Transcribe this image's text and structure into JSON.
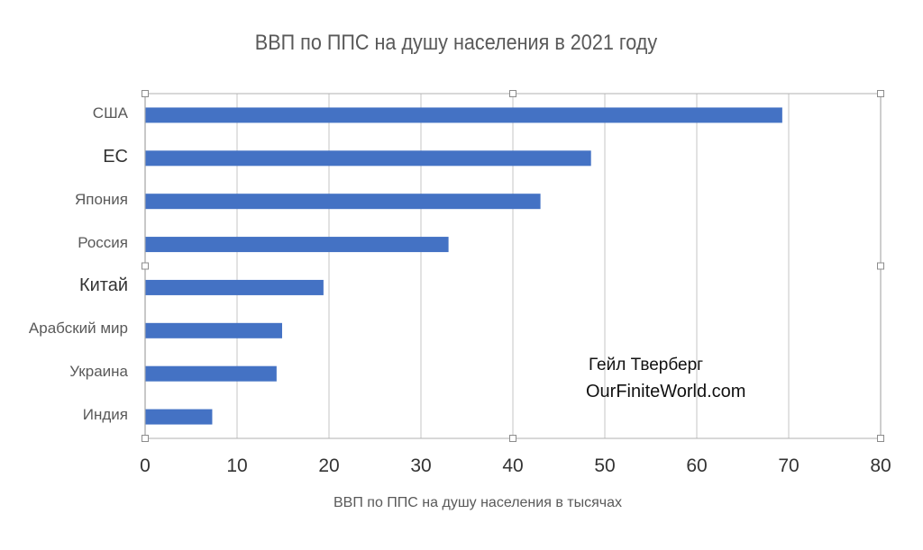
{
  "chart_data": {
    "type": "bar",
    "orientation": "horizontal",
    "title": "ВВП по ППС на душу населения в 2021 году",
    "xlabel": "ВВП по ППС на душу населения в тысячах",
    "ylabel": "",
    "categories": [
      "США",
      "ЕС",
      "Япония",
      "Россия",
      "Китай",
      "Арабский мир",
      "Украина",
      "Индия"
    ],
    "values": [
      69.3,
      48.5,
      43.0,
      33.0,
      19.4,
      14.9,
      14.3,
      7.3
    ],
    "xlim": [
      0,
      80
    ],
    "x_ticks": [
      "0",
      "10",
      "20",
      "30",
      "40",
      "50",
      "60",
      "70",
      "80"
    ],
    "grid": true,
    "bar_color": "#4472C4",
    "annotation": {
      "line1": "Гейл Тверберг",
      "line2": "OurFiniteWorld.com"
    }
  }
}
